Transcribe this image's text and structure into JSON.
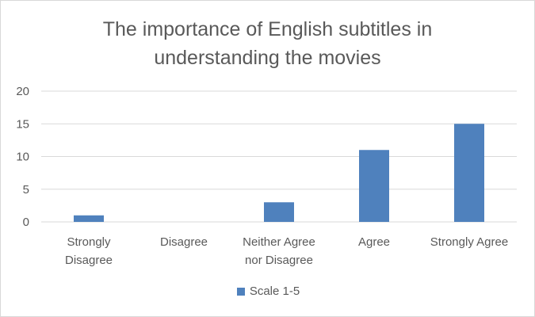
{
  "chart_data": {
    "type": "bar",
    "title": "The importance of English subtitles in understanding the movies",
    "categories": [
      "Strongly Disagree",
      "Disagree",
      "Neither Agree nor Disagree",
      "Agree",
      "Strongly Agree"
    ],
    "category_label_lines": [
      [
        "Strongly",
        "Disagree"
      ],
      [
        "Disagree"
      ],
      [
        "Neither Agree",
        "nor Disagree"
      ],
      [
        "Agree"
      ],
      [
        "Strongly Agree"
      ]
    ],
    "series": [
      {
        "name": "Scale 1-5",
        "values": [
          1,
          0,
          3,
          11,
          15
        ]
      }
    ],
    "ylim": [
      0,
      20
    ],
    "yticks": [
      0,
      5,
      10,
      15,
      20
    ],
    "grid": true,
    "legend": "bottom",
    "colors": {
      "bar": "#4f81bd",
      "grid": "#d9d9d9",
      "text": "#595959"
    }
  }
}
